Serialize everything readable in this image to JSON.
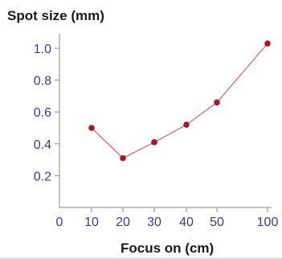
{
  "chart_data": {
    "type": "line",
    "title": "",
    "ylabel": "Spot size (mm)",
    "xlabel": "Focus on (cm)",
    "x_ticks": [
      "0",
      "10",
      "20",
      "30",
      "40",
      "50",
      "100"
    ],
    "y_ticks": [
      "0.2",
      "0.4",
      "0.6",
      "0.8",
      "1.0"
    ],
    "x_tick_values": [
      0,
      10,
      20,
      30,
      40,
      50,
      100
    ],
    "y_tick_values": [
      0.2,
      0.4,
      0.6,
      0.8,
      1.0
    ],
    "ylim": [
      0,
      1.1
    ],
    "grid": false,
    "series": [
      {
        "x": [
          10,
          20,
          30,
          40,
          50,
          100
        ],
        "y": [
          0.5,
          0.31,
          0.41,
          0.52,
          0.66,
          1.03
        ]
      }
    ],
    "colors": {
      "line": "#c8475a",
      "marker": "#a8172c",
      "axis": "#8a8a8a",
      "tick_text": "#3a3a80"
    }
  }
}
